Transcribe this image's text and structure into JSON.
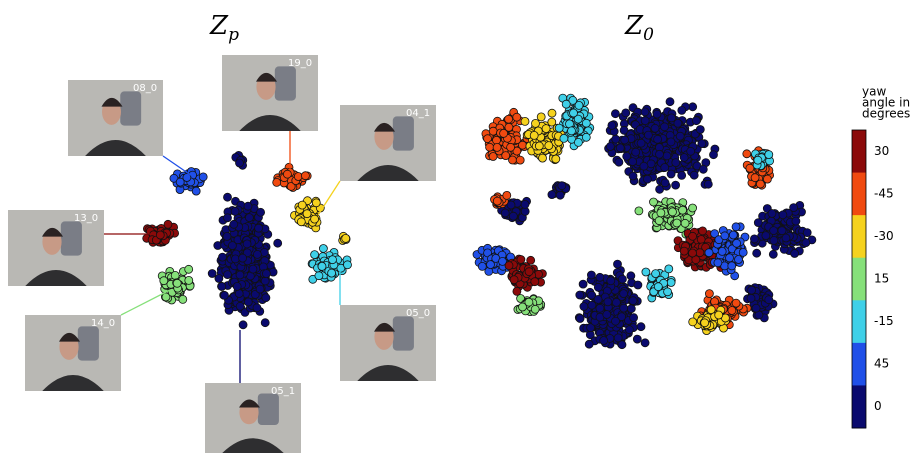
{
  "panels": [
    {
      "title": {
        "main": "Z",
        "sub": "p"
      }
    },
    {
      "title": {
        "main": "Z",
        "sub": "0"
      }
    }
  ],
  "photos": [
    {
      "label": "08_0"
    },
    {
      "label": "19_0"
    },
    {
      "label": "04_1"
    },
    {
      "label": "13_0"
    },
    {
      "label": "14_0"
    },
    {
      "label": "05_0"
    },
    {
      "label": "05_1"
    }
  ],
  "colorbar": {
    "title": [
      "yaw",
      "angle in",
      "degrees"
    ],
    "segments": [
      {
        "label": "30",
        "color": "#8b0a0a"
      },
      {
        "label": "-45",
        "color": "#f04a10"
      },
      {
        "label": "-30",
        "color": "#f5d21e"
      },
      {
        "label": "15",
        "color": "#86e07a"
      },
      {
        "label": "-15",
        "color": "#3fd0e8"
      },
      {
        "label": "45",
        "color": "#2050e8"
      },
      {
        "label": "0",
        "color": "#0a0a6e"
      }
    ]
  }
}
